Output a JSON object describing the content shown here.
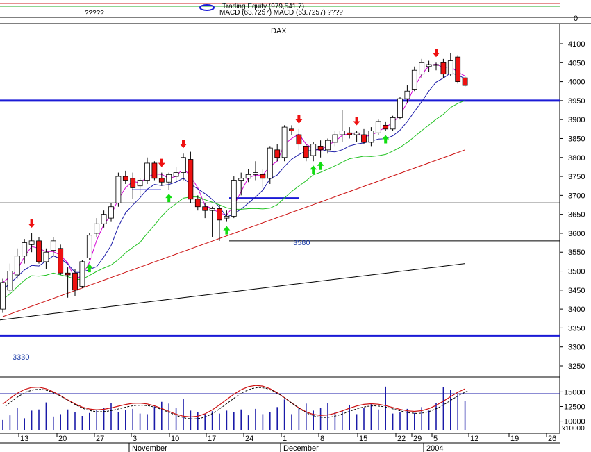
{
  "chart_data": {
    "type": "candlestick",
    "title": "DAX",
    "header": {
      "legend_line1": "Trading Equity (979,541.7)",
      "legend_line2": "MACD (63.7257) MACD (63.7257) ????",
      "legend_question": "?????",
      "zero_label": "0"
    },
    "price_axis": {
      "ymin": 3200,
      "ymax": 4120,
      "ticks": [
        3250,
        3300,
        3350,
        3400,
        3450,
        3500,
        3550,
        3600,
        3650,
        3700,
        3750,
        3800,
        3850,
        3900,
        3950,
        4000,
        4050,
        4100
      ]
    },
    "volume_axis": {
      "ticks": [
        10000,
        12500,
        15000
      ],
      "tick_labels": [
        "10000",
        "12500",
        "15000"
      ],
      "unit_label": "x10000"
    },
    "x_axis": {
      "day_labels": [
        "13",
        "20",
        "27",
        "3",
        "10",
        "17",
        "24",
        "1",
        "8",
        "15",
        "22",
        "29",
        "5",
        "12",
        "19",
        "26"
      ],
      "month_labels": [
        "November",
        "December",
        "2004"
      ]
    },
    "candles": [
      {
        "d": "Nov 10",
        "o": 3400,
        "h": 3480,
        "l": 3390,
        "c": 3470
      },
      {
        "d": "Nov 11",
        "o": 3450,
        "h": 3520,
        "l": 3440,
        "c": 3500
      },
      {
        "d": "Nov 12",
        "o": 3490,
        "h": 3560,
        "l": 3480,
        "c": 3540
      },
      {
        "d": "Nov 13",
        "o": 3540,
        "h": 3585,
        "l": 3520,
        "c": 3575
      },
      {
        "d": "Nov 14",
        "o": 3570,
        "h": 3600,
        "l": 3550,
        "c": 3580
      },
      {
        "d": "Nov 17",
        "o": 3580,
        "h": 3590,
        "l": 3520,
        "c": 3525
      },
      {
        "d": "Nov 18",
        "o": 3525,
        "h": 3560,
        "l": 3505,
        "c": 3550
      },
      {
        "d": "Nov 19",
        "o": 3555,
        "h": 3590,
        "l": 3540,
        "c": 3580
      },
      {
        "d": "Nov 20",
        "o": 3560,
        "h": 3570,
        "l": 3490,
        "c": 3495
      },
      {
        "d": "Nov 21",
        "o": 3495,
        "h": 3510,
        "l": 3430,
        "c": 3490
      },
      {
        "d": "Nov 24",
        "o": 3495,
        "h": 3505,
        "l": 3435,
        "c": 3450
      },
      {
        "d": "Nov 25",
        "o": 3460,
        "h": 3530,
        "l": 3455,
        "c": 3525
      },
      {
        "d": "Nov 26",
        "o": 3535,
        "h": 3600,
        "l": 3530,
        "c": 3595
      },
      {
        "d": "Nov 27",
        "o": 3600,
        "h": 3640,
        "l": 3590,
        "c": 3625
      },
      {
        "d": "Nov 28",
        "o": 3625,
        "h": 3660,
        "l": 3615,
        "c": 3650
      },
      {
        "d": "Dec 01",
        "o": 3640,
        "h": 3680,
        "l": 3630,
        "c": 3670
      },
      {
        "d": "Dec 02",
        "o": 3680,
        "h": 3760,
        "l": 3670,
        "c": 3750
      },
      {
        "d": "Dec 03",
        "o": 3750,
        "h": 3765,
        "l": 3730,
        "c": 3740
      },
      {
        "d": "Dec 04",
        "o": 3745,
        "h": 3760,
        "l": 3690,
        "c": 3720
      },
      {
        "d": "Dec 05",
        "o": 3725,
        "h": 3745,
        "l": 3700,
        "c": 3740
      },
      {
        "d": "Dec 08",
        "o": 3740,
        "h": 3800,
        "l": 3730,
        "c": 3785
      },
      {
        "d": "Dec 09",
        "o": 3785,
        "h": 3790,
        "l": 3740,
        "c": 3745
      },
      {
        "d": "Dec 10",
        "o": 3745,
        "h": 3760,
        "l": 3725,
        "c": 3735
      },
      {
        "d": "Dec 11",
        "o": 3735,
        "h": 3760,
        "l": 3715,
        "c": 3755
      },
      {
        "d": "Dec 12",
        "o": 3750,
        "h": 3775,
        "l": 3735,
        "c": 3760
      },
      {
        "d": "Dec 15",
        "o": 3760,
        "h": 3810,
        "l": 3740,
        "c": 3800
      },
      {
        "d": "Dec 16",
        "o": 3795,
        "h": 3815,
        "l": 3680,
        "c": 3690
      },
      {
        "d": "Dec 17",
        "o": 3690,
        "h": 3700,
        "l": 3660,
        "c": 3670
      },
      {
        "d": "Dec 18",
        "o": 3670,
        "h": 3680,
        "l": 3640,
        "c": 3660
      },
      {
        "d": "Dec 19",
        "o": 3660,
        "h": 3670,
        "l": 3590,
        "c": 3665
      },
      {
        "d": "Dec 22",
        "o": 3665,
        "h": 3675,
        "l": 3580,
        "c": 3635
      },
      {
        "d": "Dec 23",
        "o": 3640,
        "h": 3660,
        "l": 3630,
        "c": 3645
      },
      {
        "d": "Dec 24",
        "o": 3645,
        "h": 3750,
        "l": 3640,
        "c": 3740
      },
      {
        "d": "Dec 29",
        "o": 3740,
        "h": 3760,
        "l": 3700,
        "c": 3745
      },
      {
        "d": "Dec 30",
        "o": 3745,
        "h": 3770,
        "l": 3735,
        "c": 3755
      },
      {
        "d": "Jan 02",
        "o": 3755,
        "h": 3790,
        "l": 3740,
        "c": 3760
      },
      {
        "d": "Jan 05",
        "o": 3755,
        "h": 3770,
        "l": 3720,
        "c": 3745
      },
      {
        "d": "Jan 06",
        "o": 3745,
        "h": 3830,
        "l": 3730,
        "c": 3825
      },
      {
        "d": "Jan 07",
        "o": 3820,
        "h": 3835,
        "l": 3790,
        "c": 3800
      },
      {
        "d": "Jan 08",
        "o": 3800,
        "h": 3885,
        "l": 3790,
        "c": 3880
      },
      {
        "d": "Jan 09",
        "o": 3875,
        "h": 3885,
        "l": 3860,
        "c": 3870
      },
      {
        "d": "Jan 12",
        "o": 3860,
        "h": 3875,
        "l": 3820,
        "c": 3835
      },
      {
        "d": "Jan 13",
        "o": 3830,
        "h": 3835,
        "l": 3790,
        "c": 3800
      },
      {
        "d": "Jan 14",
        "o": 3805,
        "h": 3840,
        "l": 3790,
        "c": 3835
      },
      {
        "d": "Jan 15",
        "o": 3830,
        "h": 3845,
        "l": 3800,
        "c": 3820
      },
      {
        "d": "Jan 16",
        "o": 3820,
        "h": 3850,
        "l": 3810,
        "c": 3845
      },
      {
        "d": "Jan 19",
        "o": 3840,
        "h": 3870,
        "l": 3830,
        "c": 3860
      },
      {
        "d": "Jan 20",
        "o": 3860,
        "h": 3925,
        "l": 3840,
        "c": 3870
      },
      {
        "d": "Jan 21",
        "o": 3865,
        "h": 3880,
        "l": 3850,
        "c": 3860
      },
      {
        "d": "Jan 22",
        "o": 3860,
        "h": 3870,
        "l": 3840,
        "c": 3865
      },
      {
        "d": "Jan 23",
        "o": 3860,
        "h": 3875,
        "l": 3835,
        "c": 3840
      },
      {
        "d": "Jan 26",
        "o": 3840,
        "h": 3880,
        "l": 3830,
        "c": 3870
      },
      {
        "d": "Jan 27",
        "o": 3865,
        "h": 3900,
        "l": 3860,
        "c": 3895
      },
      {
        "d": "Jan 28",
        "o": 3885,
        "h": 3895,
        "l": 3870,
        "c": 3875
      },
      {
        "d": "Jan 29",
        "o": 3875,
        "h": 3910,
        "l": 3870,
        "c": 3905
      },
      {
        "d": "Jan 30",
        "o": 3905,
        "h": 3960,
        "l": 3900,
        "c": 3955
      },
      {
        "d": "Feb 02",
        "o": 3955,
        "h": 3990,
        "l": 3945,
        "c": 3975
      },
      {
        "d": "Feb 03",
        "o": 3980,
        "h": 4040,
        "l": 3975,
        "c": 4030
      },
      {
        "d": "Feb 04",
        "o": 4020,
        "h": 4060,
        "l": 4010,
        "c": 4050
      },
      {
        "d": "Feb 05",
        "o": 4040,
        "h": 4055,
        "l": 4025,
        "c": 4045
      },
      {
        "d": "Feb 06",
        "o": 4045,
        "h": 4050,
        "l": 4030,
        "c": 4045
      },
      {
        "d": "Feb 09",
        "o": 4050,
        "h": 4060,
        "l": 4010,
        "c": 4020
      },
      {
        "d": "Feb 10",
        "o": 4020,
        "h": 4075,
        "l": 4015,
        "c": 4055
      },
      {
        "d": "Feb 11",
        "o": 4065,
        "h": 4070,
        "l": 3995,
        "c": 4000
      },
      {
        "d": "Feb 12",
        "o": 4010,
        "h": 4015,
        "l": 3985,
        "c": 3990
      }
    ],
    "support_lines": [
      3330,
      3580,
      3680,
      3950
    ],
    "support_labels": [
      {
        "value": 3580,
        "text": "3580"
      },
      {
        "value": 3330,
        "text": "3330"
      }
    ],
    "moving_averages": [
      {
        "color": "#d400d4",
        "window": 3
      },
      {
        "color": "#1a1aa8",
        "window": 6
      },
      {
        "color": "#22c222",
        "window": 12
      },
      {
        "color": "#cc1111",
        "window": 30
      },
      {
        "color": "#000000",
        "window": 60
      }
    ],
    "volume": [
      10200,
      11000,
      12200,
      10500,
      11800,
      12000,
      13200,
      10800,
      11200,
      12000,
      11600,
      10900,
      11400,
      11900,
      12300,
      13100,
      11600,
      11900,
      12100,
      11300,
      11200,
      12500,
      13300,
      13000,
      12200,
      13800,
      11800,
      11500,
      11200,
      11700,
      11300,
      11800,
      11500,
      12000,
      11000,
      12100,
      11200,
      11500,
      12400,
      13700,
      11200,
      12200,
      13000,
      11800,
      12300,
      13100,
      11600,
      11900,
      12800,
      11200,
      12200,
      12900,
      12000,
      15900,
      11300,
      11600,
      12100,
      11400,
      12400,
      11800,
      13100,
      15800,
      15300,
      14600,
      13500
    ],
    "signals": {
      "sell": [
        4,
        22,
        25,
        41,
        49,
        60
      ],
      "buy": [
        12,
        23,
        31,
        43,
        53,
        44
      ]
    }
  },
  "colors": {
    "price_axis_bg": "#ffffff",
    "up_candle": "#ffffff",
    "down_candle": "#ee1111",
    "buy_arrow": "#11dd11",
    "sell_arrow": "#ee1111",
    "support": "#1a1ad6",
    "volume_bar": "#1a1aa8"
  }
}
